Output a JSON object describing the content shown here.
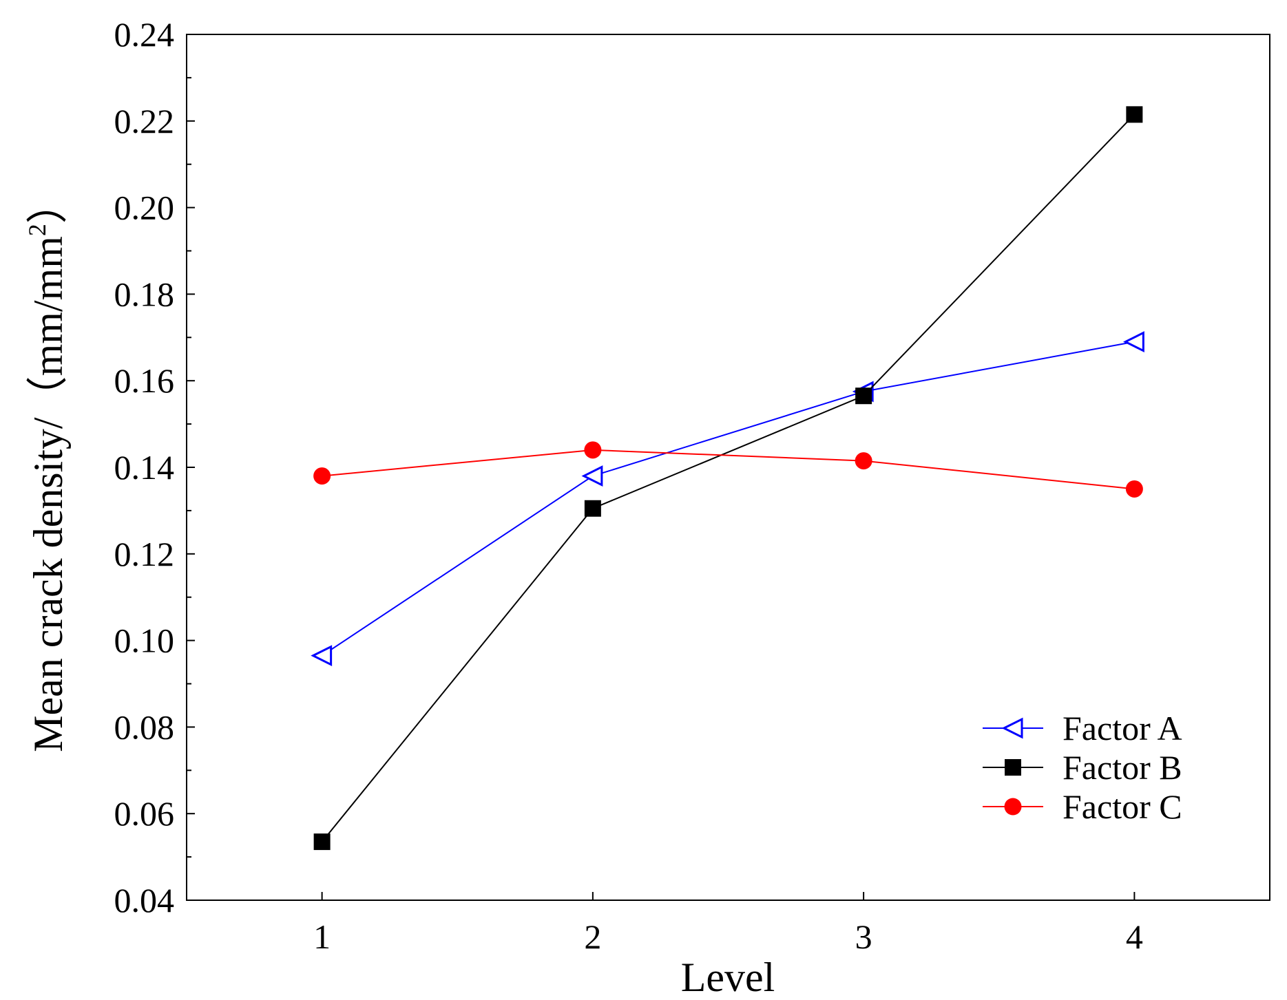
{
  "chart_data": {
    "type": "line",
    "title": "",
    "xlabel": "Level",
    "ylabel": {
      "main": "Mean crack density/（mm/mm",
      "superscript": "2",
      "closing": "）"
    },
    "categories": [
      "1",
      "2",
      "3",
      "4"
    ],
    "x": [
      1,
      2,
      3,
      4
    ],
    "xlim": [
      0.5,
      4.5
    ],
    "ylim": [
      0.04,
      0.24
    ],
    "yticks": [
      "0.04",
      "0.06",
      "0.08",
      "0.10",
      "0.12",
      "0.14",
      "0.16",
      "0.18",
      "0.20",
      "0.22",
      "0.24"
    ],
    "grid": false,
    "legend_position": "bottom-right",
    "series": [
      {
        "name": "Factor A",
        "color": "#0000ff",
        "marker": "triangle-left-open",
        "values": [
          0.0965,
          0.138,
          0.1575,
          0.169
        ]
      },
      {
        "name": "Factor B",
        "color": "#000000",
        "marker": "square-filled",
        "values": [
          0.0535,
          0.1305,
          0.1565,
          0.2215
        ]
      },
      {
        "name": "Factor C",
        "color": "#ff0000",
        "marker": "circle-filled",
        "values": [
          0.138,
          0.144,
          0.1415,
          0.135
        ]
      }
    ]
  }
}
